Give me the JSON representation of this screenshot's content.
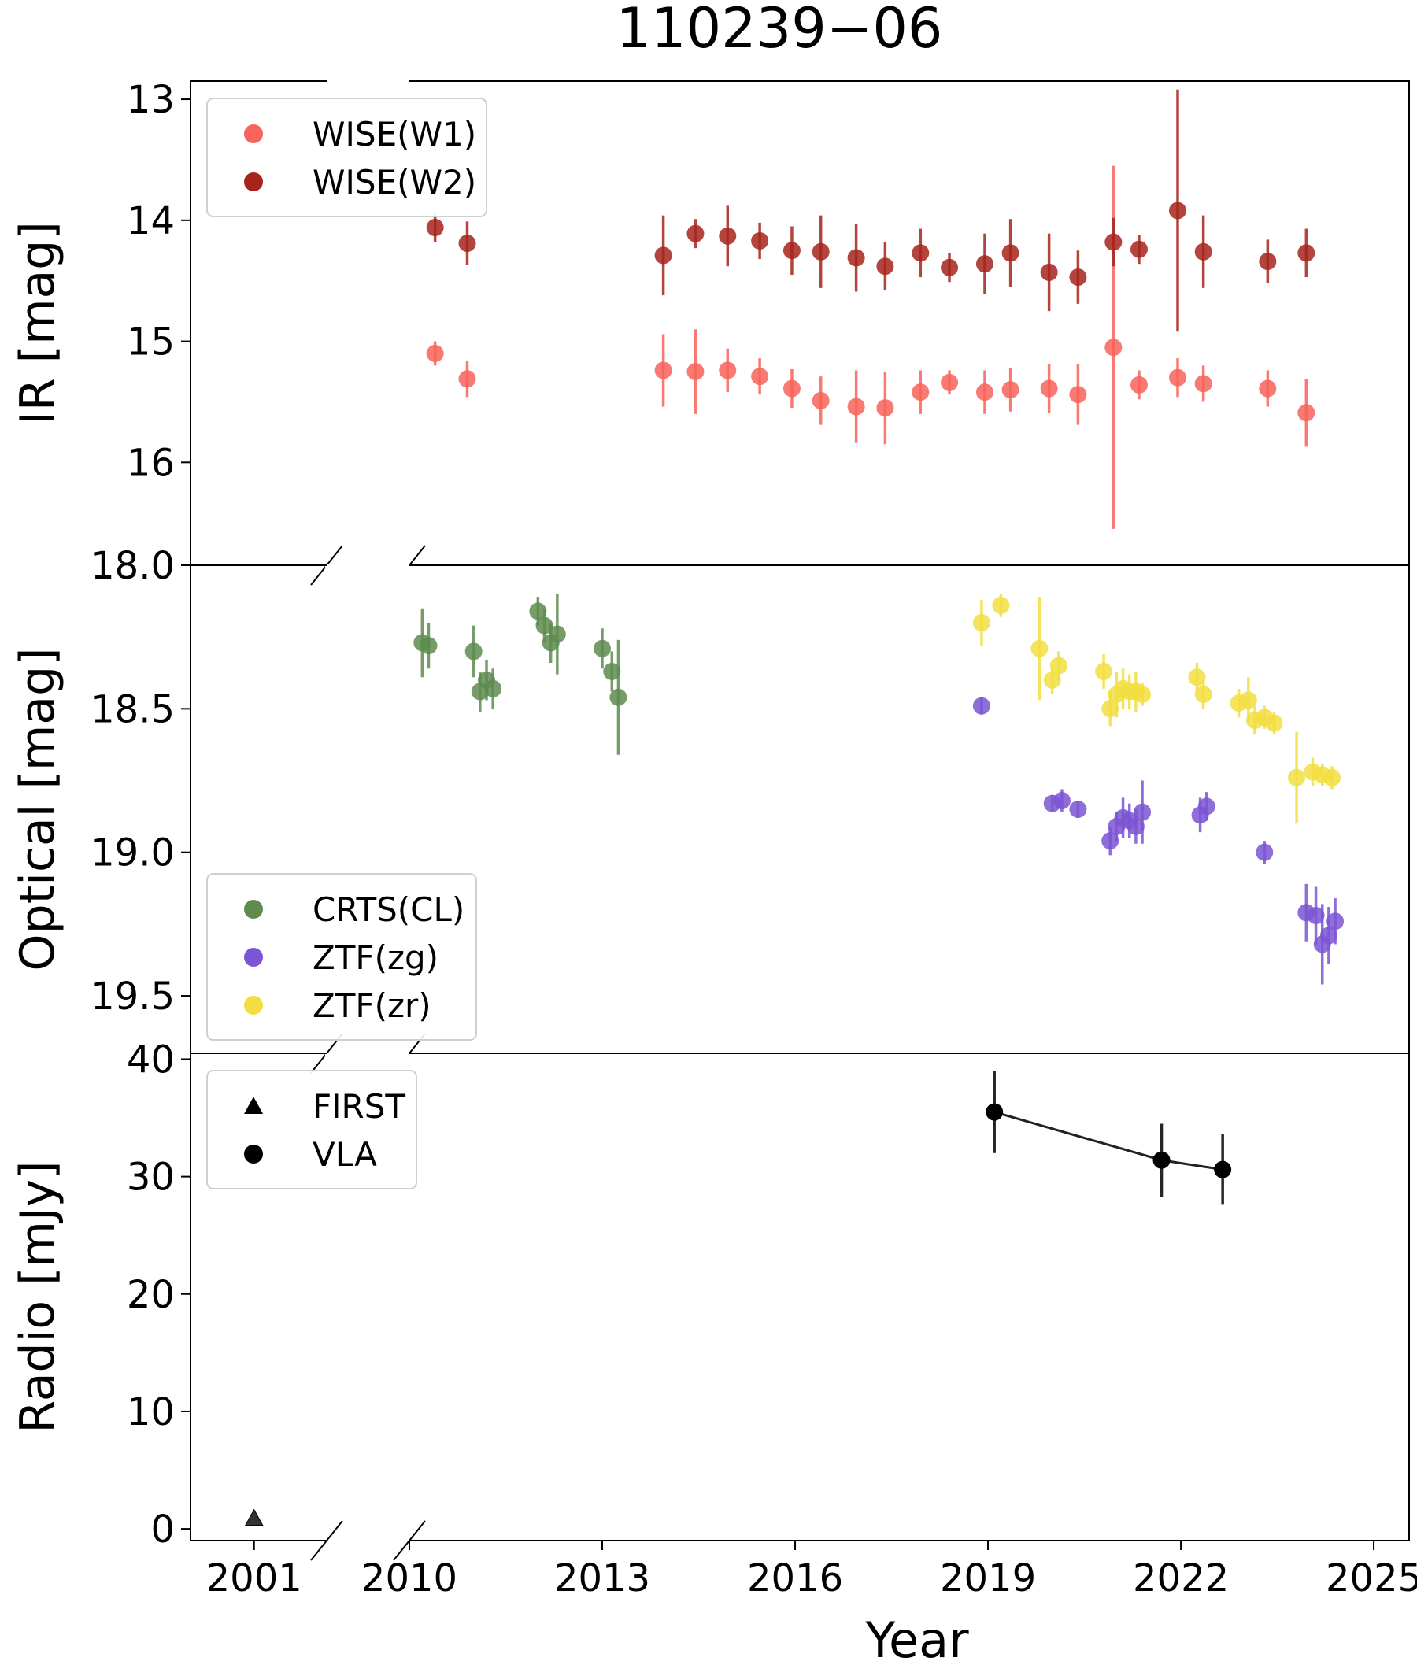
{
  "chart_data": {
    "type": "scatter",
    "title": "110239−06",
    "xlabel": "Year",
    "x_ticks_left": [
      "2001"
    ],
    "x_ticks_right": [
      "2010",
      "2013",
      "2016",
      "2019",
      "2022",
      "2025"
    ],
    "x_range_left": [
      2000.3,
      2001.8
    ],
    "x_range_right": [
      2010.0,
      2025.55
    ],
    "panels": [
      {
        "id": "ir",
        "ylabel": "IR [mag]",
        "inverted": true,
        "ylim_top": 12.85,
        "ylim_bottom": 16.85,
        "ticks": [
          "13",
          "14",
          "15",
          "16"
        ],
        "legend_location": "upper-left",
        "series": [
          {
            "name": "WISE(W1)",
            "color": "#f8635b",
            "marker": "circle",
            "points": [
              [
                2010.4,
                15.1,
                0.1
              ],
              [
                2010.9,
                15.31,
                0.15
              ],
              [
                2013.95,
                15.24,
                0.3
              ],
              [
                2014.45,
                15.25,
                0.35
              ],
              [
                2014.95,
                15.24,
                0.18
              ],
              [
                2015.45,
                15.29,
                0.15
              ],
              [
                2015.95,
                15.39,
                0.16
              ],
              [
                2016.4,
                15.49,
                0.2
              ],
              [
                2016.95,
                15.54,
                0.3
              ],
              [
                2017.4,
                15.55,
                0.3
              ],
              [
                2017.95,
                15.42,
                0.18
              ],
              [
                2018.4,
                15.34,
                0.1
              ],
              [
                2018.95,
                15.42,
                0.18
              ],
              [
                2019.35,
                15.4,
                0.18
              ],
              [
                2019.95,
                15.39,
                0.2
              ],
              [
                2020.4,
                15.44,
                0.25
              ],
              [
                2020.95,
                15.05,
                1.5
              ],
              [
                2021.35,
                15.36,
                0.12
              ],
              [
                2021.95,
                15.3,
                0.16
              ],
              [
                2022.35,
                15.35,
                0.15
              ],
              [
                2023.35,
                15.39,
                0.15
              ],
              [
                2023.95,
                15.59,
                0.28
              ]
            ]
          },
          {
            "name": "WISE(W2)",
            "color": "#a6241c",
            "marker": "circle",
            "points": [
              [
                2010.4,
                14.06,
                0.12
              ],
              [
                2010.9,
                14.19,
                0.18
              ],
              [
                2013.95,
                14.29,
                0.33
              ],
              [
                2014.45,
                14.11,
                0.12
              ],
              [
                2014.95,
                14.13,
                0.25
              ],
              [
                2015.45,
                14.17,
                0.15
              ],
              [
                2015.95,
                14.25,
                0.2
              ],
              [
                2016.4,
                14.26,
                0.3
              ],
              [
                2016.95,
                14.31,
                0.28
              ],
              [
                2017.4,
                14.38,
                0.2
              ],
              [
                2017.95,
                14.27,
                0.2
              ],
              [
                2018.4,
                14.39,
                0.12
              ],
              [
                2018.95,
                14.36,
                0.25
              ],
              [
                2019.35,
                14.27,
                0.28
              ],
              [
                2019.95,
                14.43,
                0.32
              ],
              [
                2020.4,
                14.47,
                0.22
              ],
              [
                2020.95,
                14.18,
                0.2
              ],
              [
                2021.35,
                14.24,
                0.12
              ],
              [
                2021.95,
                13.92,
                1.0
              ],
              [
                2022.35,
                14.26,
                0.3
              ],
              [
                2023.35,
                14.34,
                0.18
              ],
              [
                2023.95,
                14.27,
                0.2
              ]
            ]
          }
        ]
      },
      {
        "id": "optical",
        "ylabel": "Optical [mag]",
        "inverted": true,
        "ylim_top": 18.0,
        "ylim_bottom": 19.7,
        "ticks": [
          "18.0",
          "18.5",
          "19.0",
          "19.5"
        ],
        "legend_location": "lower-left",
        "series": [
          {
            "name": "CRTS(CL)",
            "color": "#5e8c4f",
            "marker": "circle",
            "points": [
              [
                2010.2,
                18.27,
                0.12
              ],
              [
                2010.3,
                18.28,
                0.08
              ],
              [
                2011.0,
                18.3,
                0.09
              ],
              [
                2011.1,
                18.44,
                0.07
              ],
              [
                2011.2,
                18.4,
                0.07
              ],
              [
                2011.3,
                18.43,
                0.07
              ],
              [
                2012.0,
                18.16,
                0.05
              ],
              [
                2012.1,
                18.21,
                0.06
              ],
              [
                2012.2,
                18.27,
                0.07
              ],
              [
                2012.3,
                18.24,
                0.14
              ],
              [
                2013.0,
                18.29,
                0.07
              ],
              [
                2013.15,
                18.37,
                0.07
              ],
              [
                2013.25,
                18.46,
                0.2
              ]
            ]
          },
          {
            "name": "ZTF(zg)",
            "color": "#7b55d4",
            "marker": "circle",
            "points": [
              [
                2018.9,
                18.49,
                0.03
              ],
              [
                2020.0,
                18.83,
                0.03
              ],
              [
                2020.15,
                18.82,
                0.04
              ],
              [
                2020.4,
                18.85,
                0.03
              ],
              [
                2020.9,
                18.96,
                0.05
              ],
              [
                2021.0,
                18.91,
                0.05
              ],
              [
                2021.1,
                18.88,
                0.07
              ],
              [
                2021.2,
                18.89,
                0.06
              ],
              [
                2021.3,
                18.91,
                0.06
              ],
              [
                2021.4,
                18.86,
                0.11
              ],
              [
                2022.3,
                18.87,
                0.06
              ],
              [
                2022.4,
                18.84,
                0.05
              ],
              [
                2023.3,
                19.0,
                0.04
              ],
              [
                2023.95,
                19.21,
                0.1
              ],
              [
                2024.1,
                19.22,
                0.1
              ],
              [
                2024.2,
                19.32,
                0.14
              ],
              [
                2024.3,
                19.29,
                0.1
              ],
              [
                2024.4,
                19.24,
                0.08
              ]
            ]
          },
          {
            "name": "ZTF(zr)",
            "color": "#f2de40",
            "marker": "circle",
            "points": [
              [
                2018.9,
                18.2,
                0.08
              ],
              [
                2019.2,
                18.14,
                0.04
              ],
              [
                2019.8,
                18.29,
                0.18
              ],
              [
                2020.0,
                18.4,
                0.05
              ],
              [
                2020.1,
                18.35,
                0.05
              ],
              [
                2020.8,
                18.37,
                0.06
              ],
              [
                2020.9,
                18.5,
                0.06
              ],
              [
                2021.0,
                18.45,
                0.08
              ],
              [
                2021.1,
                18.43,
                0.07
              ],
              [
                2021.2,
                18.44,
                0.06
              ],
              [
                2021.3,
                18.44,
                0.07
              ],
              [
                2021.4,
                18.45,
                0.04
              ],
              [
                2022.25,
                18.39,
                0.05
              ],
              [
                2022.35,
                18.45,
                0.05
              ],
              [
                2022.9,
                18.48,
                0.05
              ],
              [
                2023.05,
                18.47,
                0.08
              ],
              [
                2023.15,
                18.54,
                0.05
              ],
              [
                2023.3,
                18.53,
                0.04
              ],
              [
                2023.45,
                18.55,
                0.04
              ],
              [
                2023.8,
                18.74,
                0.16
              ],
              [
                2024.05,
                18.72,
                0.05
              ],
              [
                2024.2,
                18.73,
                0.04
              ],
              [
                2024.35,
                18.74,
                0.04
              ]
            ]
          }
        ]
      },
      {
        "id": "radio",
        "ylabel": "Radio [mJy]",
        "inverted": false,
        "ylim_top": 40.5,
        "ylim_bottom": -1.0,
        "ticks": [
          "40",
          "30",
          "20",
          "10",
          "0"
        ],
        "legend_location": "upper-left",
        "series": [
          {
            "name": "FIRST",
            "color": "#000000",
            "marker": "triangle",
            "points": [
              [
                2001.0,
                0.9,
                0.4
              ]
            ]
          },
          {
            "name": "VLA",
            "color": "#000000",
            "marker": "circle",
            "connected": true,
            "points": [
              [
                2019.1,
                35.5,
                3.5
              ],
              [
                2021.7,
                31.4,
                3.1
              ],
              [
                2022.65,
                30.6,
                3.0
              ]
            ]
          }
        ]
      }
    ]
  }
}
